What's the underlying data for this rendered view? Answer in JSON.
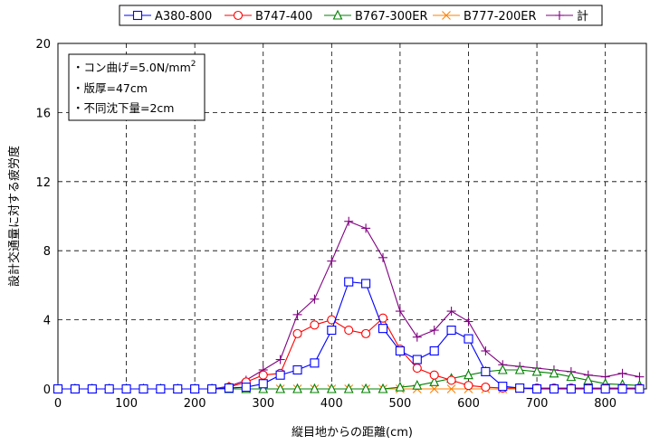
{
  "chart_data": {
    "type": "line",
    "xlabel": "縦目地からの距離(cm)",
    "ylabel": "設計交通量に対する疲労度",
    "xlim": [
      0,
      860
    ],
    "ylim": [
      0,
      20
    ],
    "xticks": [
      0,
      100,
      200,
      300,
      400,
      500,
      600,
      700,
      800
    ],
    "yticks": [
      0,
      4,
      8,
      12,
      16,
      20
    ],
    "grid": true,
    "legend_position": "top",
    "annotation": {
      "line1": "・コン曲げ=5.0N/mm",
      "line1_sup": "2",
      "line2": "・版厚=47cm",
      "line3": "・不同沈下量=2cm"
    },
    "x": [
      0,
      25,
      50,
      75,
      100,
      125,
      150,
      175,
      200,
      225,
      250,
      275,
      300,
      325,
      350,
      375,
      400,
      425,
      450,
      475,
      500,
      525,
      550,
      575,
      600,
      625,
      650,
      675,
      700,
      725,
      750,
      775,
      800,
      825,
      850
    ],
    "series": [
      {
        "name": "A380-800",
        "color": "#0000ff",
        "marker": "square",
        "values": [
          0,
          0,
          0,
          0,
          0,
          0,
          0,
          0,
          0,
          0,
          0.05,
          0.1,
          0.3,
          0.8,
          1.1,
          1.5,
          3.4,
          6.2,
          6.1,
          3.5,
          2.2,
          1.7,
          2.2,
          3.4,
          2.9,
          1.0,
          0.15,
          0.05,
          0,
          0,
          0,
          0,
          0,
          0,
          0
        ]
      },
      {
        "name": "B747-400",
        "color": "#ff0000",
        "marker": "circle",
        "values": [
          0,
          0,
          0,
          0,
          0,
          0,
          0,
          0,
          0,
          0,
          0.1,
          0.4,
          0.8,
          0.9,
          3.2,
          3.7,
          4.0,
          3.4,
          3.2,
          4.1,
          2.3,
          1.2,
          0.8,
          0.5,
          0.2,
          0.1,
          0.05,
          0.05,
          0.05,
          0.05,
          0.05,
          0.05,
          0.05,
          0.05,
          0.05
        ]
      },
      {
        "name": "B767-300ER",
        "color": "#008000",
        "marker": "triangle",
        "values": [
          0,
          0,
          0,
          0,
          0,
          0,
          0,
          0,
          0,
          0,
          0,
          0,
          0,
          0,
          0,
          0,
          0,
          0,
          0,
          0,
          0.1,
          0.2,
          0.4,
          0.6,
          0.8,
          1.0,
          1.1,
          1.1,
          1.0,
          0.9,
          0.7,
          0.5,
          0.3,
          0.25,
          0.2
        ]
      },
      {
        "name": "B777-200ER",
        "color": "#ff8000",
        "marker": "x",
        "values": [
          0,
          0,
          0,
          0,
          0,
          0,
          0,
          0,
          0,
          0,
          0,
          0,
          0,
          0,
          0,
          0,
          0,
          0,
          0,
          0,
          0,
          0,
          0,
          0,
          0,
          0,
          0,
          0,
          0,
          0,
          0,
          0,
          0,
          0,
          0
        ]
      },
      {
        "name": "計",
        "color": "#800080",
        "marker": "plus",
        "values": [
          0,
          0,
          0,
          0,
          0,
          0,
          0,
          0,
          0,
          0,
          0.15,
          0.5,
          1.1,
          1.7,
          4.3,
          5.2,
          7.4,
          9.7,
          9.3,
          7.6,
          4.5,
          3.0,
          3.4,
          4.5,
          3.9,
          2.2,
          1.4,
          1.3,
          1.2,
          1.1,
          1.0,
          0.8,
          0.7,
          0.9,
          0.7
        ]
      }
    ]
  }
}
